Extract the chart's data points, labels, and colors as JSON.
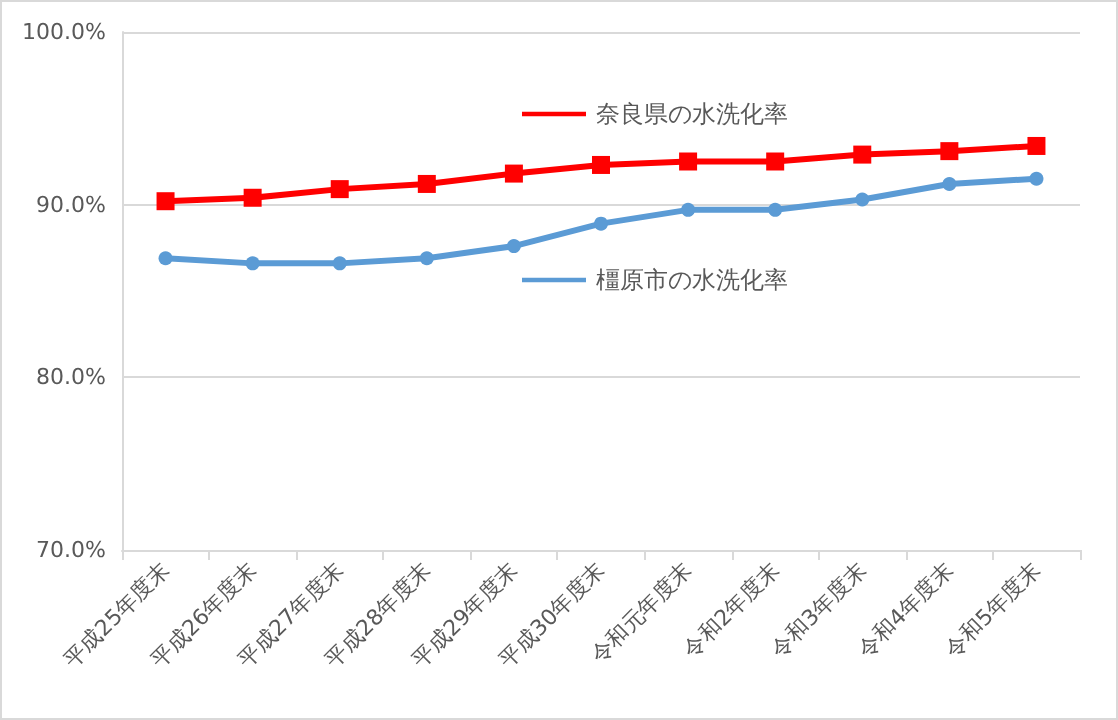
{
  "chart_data": {
    "type": "line",
    "categories": [
      "平成25年度末",
      "平成26年度末",
      "平成27年度末",
      "平成28年度末",
      "平成29年度末",
      "平成30年度末",
      "令和元年度末",
      "令和2年度末",
      "令和3年度末",
      "令和4年度末",
      "令和5年度末"
    ],
    "series": [
      {
        "name": "奈良県の水洗化率",
        "color": "#ff0000",
        "marker": "square",
        "values": [
          90.2,
          90.4,
          90.9,
          91.2,
          91.8,
          92.3,
          92.5,
          92.5,
          92.9,
          93.1,
          93.4
        ]
      },
      {
        "name": "橿原市の水洗化率",
        "color": "#5b9bd5",
        "marker": "circle",
        "values": [
          86.9,
          86.6,
          86.6,
          86.9,
          87.6,
          88.9,
          89.7,
          89.7,
          90.3,
          91.2,
          91.5
        ]
      }
    ],
    "ylim": [
      70,
      100
    ],
    "yticks": [
      {
        "value": 70,
        "label": "70.0%"
      },
      {
        "value": 80,
        "label": "80.0%"
      },
      {
        "value": 90,
        "label": "90.0%"
      },
      {
        "value": 100,
        "label": "100.0%"
      }
    ],
    "grid": "y",
    "legend": "top right",
    "line_style": "solid"
  }
}
